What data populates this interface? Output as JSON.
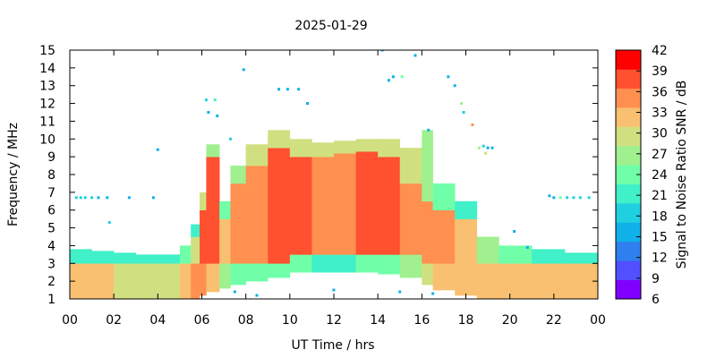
{
  "chart_data": {
    "type": "heatmap",
    "title": "2025-01-29",
    "xlabel": "UT Time / hrs",
    "ylabel": "Frequency / MHz",
    "colorbar_label": "Signal to Noise Ratio SNR / dB",
    "xlim": [
      0,
      24
    ],
    "ylim": [
      1,
      15
    ],
    "x_ticks": [
      "00",
      "02",
      "04",
      "06",
      "08",
      "10",
      "12",
      "14",
      "16",
      "18",
      "20",
      "22",
      "00"
    ],
    "y_ticks": [
      "1",
      "2",
      "3",
      "4",
      "5",
      "6",
      "7",
      "8",
      "9",
      "10",
      "11",
      "12",
      "13",
      "14",
      "15"
    ],
    "colorbar": {
      "range": [
        6,
        42
      ],
      "ticks": [
        "6",
        "9",
        "12",
        "15",
        "18",
        "21",
        "24",
        "27",
        "30",
        "33",
        "36",
        "39",
        "42"
      ],
      "colors": [
        "#7f00ff",
        "#5050ff",
        "#2f80ee",
        "#10b0e8",
        "#20d0e0",
        "#40f0c8",
        "#70ffa8",
        "#a0f090",
        "#d0e080",
        "#f8c070",
        "#ff9050",
        "#ff5030",
        "#ff0000"
      ]
    },
    "grid": false,
    "time_cells": [
      {
        "t0": 0.0,
        "t1": 1.0,
        "segments": [
          [
            1.0,
            3.0,
            33
          ],
          [
            3.0,
            3.8,
            22
          ]
        ]
      },
      {
        "t0": 1.0,
        "t1": 2.0,
        "segments": [
          [
            1.0,
            3.0,
            32
          ],
          [
            3.0,
            3.7,
            21
          ]
        ]
      },
      {
        "t0": 2.0,
        "t1": 3.0,
        "segments": [
          [
            1.0,
            3.0,
            31
          ],
          [
            3.0,
            3.6,
            21
          ]
        ]
      },
      {
        "t0": 3.0,
        "t1": 4.0,
        "segments": [
          [
            1.0,
            3.0,
            30
          ],
          [
            3.0,
            3.5,
            20
          ]
        ]
      },
      {
        "t0": 4.0,
        "t1": 5.0,
        "segments": [
          [
            1.0,
            3.0,
            30
          ],
          [
            3.0,
            3.5,
            20
          ]
        ]
      },
      {
        "t0": 5.0,
        "t1": 5.5,
        "segments": [
          [
            1.0,
            3.0,
            33
          ],
          [
            3.0,
            4.0,
            24
          ]
        ]
      },
      {
        "t0": 5.5,
        "t1": 5.9,
        "segments": [
          [
            1.0,
            3.0,
            36
          ],
          [
            3.0,
            4.5,
            30
          ],
          [
            4.5,
            5.2,
            22
          ]
        ]
      },
      {
        "t0": 5.9,
        "t1": 6.2,
        "segments": [
          [
            1.2,
            3.0,
            36
          ],
          [
            3.0,
            6.0,
            38
          ],
          [
            6.0,
            7.0,
            30
          ]
        ]
      },
      {
        "t0": 6.2,
        "t1": 6.8,
        "segments": [
          [
            1.4,
            3.0,
            33
          ],
          [
            3.0,
            9.0,
            40
          ],
          [
            9.0,
            9.7,
            28
          ]
        ]
      },
      {
        "t0": 6.8,
        "t1": 7.3,
        "segments": [
          [
            1.6,
            3.0,
            28
          ],
          [
            3.0,
            5.5,
            33
          ],
          [
            5.5,
            6.5,
            24
          ]
        ]
      },
      {
        "t0": 7.3,
        "t1": 8.0,
        "segments": [
          [
            1.8,
            3.0,
            24
          ],
          [
            3.0,
            7.5,
            35
          ],
          [
            7.5,
            8.5,
            26
          ]
        ]
      },
      {
        "t0": 8.0,
        "t1": 9.0,
        "segments": [
          [
            2.0,
            3.0,
            24
          ],
          [
            3.0,
            8.5,
            37
          ],
          [
            8.5,
            9.7,
            30
          ]
        ]
      },
      {
        "t0": 9.0,
        "t1": 10.0,
        "segments": [
          [
            2.2,
            3.0,
            24
          ],
          [
            3.0,
            9.5,
            39
          ],
          [
            9.5,
            10.5,
            30
          ]
        ]
      },
      {
        "t0": 10.0,
        "t1": 11.0,
        "segments": [
          [
            2.5,
            3.5,
            24
          ],
          [
            3.5,
            9.0,
            38
          ],
          [
            9.0,
            10.0,
            31
          ]
        ]
      },
      {
        "t0": 11.0,
        "t1": 12.0,
        "segments": [
          [
            2.5,
            3.5,
            22
          ],
          [
            3.5,
            9.0,
            37
          ],
          [
            9.0,
            9.8,
            30
          ]
        ]
      },
      {
        "t0": 12.0,
        "t1": 13.0,
        "segments": [
          [
            2.5,
            3.5,
            22
          ],
          [
            3.5,
            9.2,
            37
          ],
          [
            9.2,
            9.9,
            30
          ]
        ]
      },
      {
        "t0": 13.0,
        "t1": 14.0,
        "segments": [
          [
            2.5,
            3.5,
            23
          ],
          [
            3.5,
            9.3,
            38
          ],
          [
            9.3,
            10.0,
            30
          ]
        ]
      },
      {
        "t0": 14.0,
        "t1": 15.0,
        "segments": [
          [
            2.4,
            3.5,
            24
          ],
          [
            3.5,
            9.0,
            38
          ],
          [
            9.0,
            10.0,
            30
          ]
        ]
      },
      {
        "t0": 15.0,
        "t1": 16.0,
        "segments": [
          [
            2.2,
            3.5,
            26
          ],
          [
            3.5,
            7.5,
            37
          ],
          [
            7.5,
            9.5,
            30
          ]
        ]
      },
      {
        "t0": 16.0,
        "t1": 16.5,
        "segments": [
          [
            1.8,
            3.0,
            30
          ],
          [
            3.0,
            6.5,
            36
          ],
          [
            6.5,
            10.5,
            28
          ]
        ]
      },
      {
        "t0": 16.5,
        "t1": 17.5,
        "segments": [
          [
            1.5,
            3.0,
            32
          ],
          [
            3.0,
            6.0,
            35
          ],
          [
            6.0,
            7.5,
            25
          ]
        ]
      },
      {
        "t0": 17.5,
        "t1": 18.5,
        "segments": [
          [
            1.2,
            3.0,
            33
          ],
          [
            3.0,
            5.5,
            33
          ],
          [
            5.5,
            6.5,
            22
          ]
        ]
      },
      {
        "t0": 18.5,
        "t1": 19.5,
        "segments": [
          [
            1.0,
            3.0,
            33
          ],
          [
            3.0,
            4.5,
            26
          ]
        ]
      },
      {
        "t0": 19.5,
        "t1": 21.0,
        "segments": [
          [
            1.0,
            3.0,
            33
          ],
          [
            3.0,
            4.0,
            23
          ]
        ]
      },
      {
        "t0": 21.0,
        "t1": 22.5,
        "segments": [
          [
            1.0,
            3.0,
            33
          ],
          [
            3.0,
            3.8,
            22
          ]
        ]
      },
      {
        "t0": 22.5,
        "t1": 24.0,
        "segments": [
          [
            1.0,
            3.0,
            33
          ],
          [
            3.0,
            3.6,
            21
          ]
        ]
      }
    ],
    "speckles": [
      [
        0.3,
        6.7,
        18
      ],
      [
        0.5,
        6.7,
        18
      ],
      [
        0.7,
        6.7,
        18
      ],
      [
        1.0,
        6.7,
        18
      ],
      [
        1.3,
        6.7,
        16
      ],
      [
        1.7,
        6.7,
        16
      ],
      [
        1.8,
        5.3,
        18
      ],
      [
        2.7,
        6.7,
        16
      ],
      [
        3.8,
        6.7,
        16
      ],
      [
        4.0,
        9.4,
        15
      ],
      [
        6.2,
        12.2,
        18
      ],
      [
        6.3,
        11.5,
        16
      ],
      [
        6.6,
        12.2,
        20
      ],
      [
        6.7,
        11.3,
        15
      ],
      [
        7.3,
        10.0,
        18
      ],
      [
        7.9,
        13.9,
        15
      ],
      [
        9.5,
        12.8,
        15
      ],
      [
        9.9,
        12.8,
        15
      ],
      [
        10.4,
        12.8,
        15
      ],
      [
        10.8,
        12.0,
        16
      ],
      [
        14.2,
        15.0,
        15
      ],
      [
        14.5,
        13.3,
        15
      ],
      [
        14.7,
        13.5,
        15
      ],
      [
        15.1,
        13.5,
        24
      ],
      [
        15.7,
        14.7,
        16
      ],
      [
        16.3,
        10.5,
        16
      ],
      [
        17.2,
        13.5,
        15
      ],
      [
        17.5,
        13.0,
        15
      ],
      [
        17.8,
        12.0,
        28
      ],
      [
        17.9,
        11.5,
        18
      ],
      [
        18.3,
        10.8,
        35
      ],
      [
        18.6,
        9.5,
        28
      ],
      [
        18.8,
        9.6,
        18
      ],
      [
        19.0,
        9.5,
        16
      ],
      [
        19.2,
        9.5,
        15
      ],
      [
        18.9,
        9.2,
        30
      ],
      [
        20.2,
        4.8,
        15
      ],
      [
        20.8,
        3.9,
        15
      ],
      [
        21.8,
        6.8,
        15
      ],
      [
        22.0,
        6.7,
        15
      ],
      [
        22.3,
        6.7,
        24
      ],
      [
        22.6,
        6.7,
        18
      ],
      [
        22.9,
        6.7,
        18
      ],
      [
        23.2,
        6.7,
        18
      ],
      [
        23.6,
        6.7,
        18
      ],
      [
        7.5,
        1.4,
        15
      ],
      [
        8.5,
        1.2,
        15
      ],
      [
        12.0,
        1.5,
        15
      ],
      [
        15.0,
        1.4,
        15
      ],
      [
        16.5,
        1.3,
        15
      ]
    ]
  }
}
